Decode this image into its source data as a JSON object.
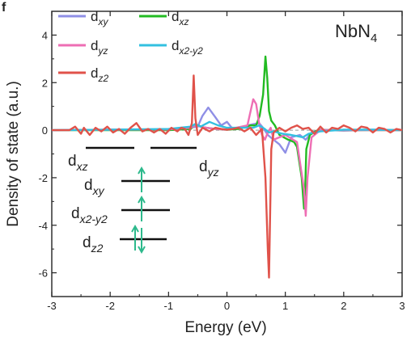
{
  "panel_letter": "f",
  "chart_data": {
    "type": "line",
    "title": "",
    "annotation": {
      "base": "NbN",
      "sub": "4"
    },
    "xlabel": "Energy (eV)",
    "ylabel": "Density of state (a.u.)",
    "xlim": [
      -3,
      3
    ],
    "ylim": [
      -7,
      5
    ],
    "xticks": [
      -3,
      -2,
      -1,
      0,
      1,
      2,
      3
    ],
    "yticks": [
      -6,
      -4,
      -2,
      0,
      2,
      4
    ],
    "grid": false,
    "legend_placement": "top-left",
    "series": [
      {
        "name": "d_xy",
        "name_base": "d",
        "name_sub": "xy",
        "color": "#8f8fe6",
        "x": [
          -3,
          -2,
          -1.2,
          -0.8,
          -0.5,
          -0.42,
          -0.32,
          -0.2,
          -0.1,
          0,
          0.1,
          0.45,
          0.55,
          0.62,
          0.7,
          0.8,
          0.9,
          1.0,
          1.1,
          1.25,
          1.35,
          1.45,
          1.6,
          2.0,
          2.5,
          3
        ],
        "y": [
          0,
          0.02,
          0.03,
          0.05,
          0.15,
          0.6,
          0.95,
          0.55,
          0.2,
          0.35,
          0.05,
          0.25,
          0.3,
          0.1,
          -0.2,
          -0.4,
          -0.6,
          -0.95,
          -0.3,
          -0.2,
          -0.4,
          -0.1,
          0.02,
          -0.02,
          0.02,
          0
        ]
      },
      {
        "name": "d_xz",
        "name_base": "d",
        "name_sub": "xz",
        "color": "#22bb22",
        "x": [
          -3,
          -1.0,
          -0.62,
          -0.55,
          -0.4,
          -0.2,
          0,
          0.2,
          0.4,
          0.5,
          0.56,
          0.62,
          0.66,
          0.69,
          0.72,
          0.76,
          0.82,
          0.9,
          1.05,
          1.15,
          1.2,
          1.28,
          1.32,
          1.34,
          1.36,
          1.42,
          1.55,
          2.0,
          2.5,
          3
        ],
        "y": [
          0,
          0,
          0.05,
          0.25,
          0.12,
          0.05,
          0.02,
          0.05,
          0.2,
          0.2,
          0.6,
          1.5,
          3.1,
          2.2,
          0.8,
          0.4,
          0.2,
          -0.2,
          -0.4,
          -0.5,
          -0.7,
          -2.0,
          -3.3,
          -2.5,
          -0.8,
          -0.2,
          0,
          0,
          0,
          0
        ]
      },
      {
        "name": "d_yz",
        "name_base": "d",
        "name_sub": "yz",
        "color": "#ee6eb4",
        "x": [
          -3,
          -2.0,
          -1.0,
          -0.62,
          -0.55,
          -0.4,
          -0.2,
          0,
          0.35,
          0.45,
          0.5,
          0.55,
          0.6,
          0.65,
          0.7,
          0.75,
          0.8,
          0.9,
          1.0,
          1.2,
          1.32,
          1.35,
          1.38,
          1.45,
          1.6,
          2.0,
          2.5,
          3
        ],
        "y": [
          0,
          0.02,
          0.03,
          0.1,
          0.2,
          0.12,
          0.05,
          0.02,
          0.2,
          1.3,
          1.1,
          0.3,
          -0.2,
          -0.4,
          -0.1,
          0.1,
          -0.4,
          -0.3,
          -0.2,
          -0.5,
          -2.5,
          -3.6,
          -2.0,
          -0.3,
          0,
          0,
          0,
          0
        ]
      },
      {
        "name": "d_x2-y2",
        "name_base": "d",
        "name_sub": "x2-y2",
        "color": "#33c0e0",
        "x": [
          -3,
          -2.0,
          -1.0,
          -0.62,
          -0.55,
          -0.45,
          -0.3,
          -0.15,
          0,
          0.2,
          0.45,
          0.55,
          0.65,
          0.72,
          0.8,
          0.95,
          1.1,
          1.2,
          1.3,
          1.4,
          1.6,
          2.0,
          2.5,
          3
        ],
        "y": [
          0,
          0.02,
          0.05,
          0.15,
          0.25,
          0.15,
          0.35,
          0.2,
          0.1,
          0.1,
          0.1,
          0.2,
          0.05,
          -0.1,
          -0.05,
          -0.15,
          -0.2,
          -0.25,
          -0.3,
          -0.15,
          -0.05,
          0.02,
          0.02,
          0
        ]
      },
      {
        "name": "d_z2",
        "name_base": "d",
        "name_sub": "z2",
        "color": "#e0524a",
        "x": [
          -3,
          -2.7,
          -2.6,
          -2.5,
          -2.45,
          -2.35,
          -2.25,
          -2.15,
          -2.05,
          -1.95,
          -1.85,
          -1.75,
          -1.65,
          -1.55,
          -1.45,
          -1.35,
          -1.25,
          -1.15,
          -1.05,
          -0.95,
          -0.85,
          -0.78,
          -0.72,
          -0.66,
          -0.6,
          -0.57,
          -0.54,
          -0.5,
          -0.42,
          -0.3,
          -0.2,
          -0.1,
          0,
          0.1,
          0.2,
          0.3,
          0.4,
          0.5,
          0.6,
          0.66,
          0.7,
          0.72,
          0.74,
          0.76,
          0.8,
          0.9,
          1.0,
          1.1,
          1.2,
          1.3,
          1.4,
          1.5,
          1.6,
          1.7,
          1.8,
          1.9,
          2.0,
          2.1,
          2.2,
          2.3,
          2.4,
          2.5,
          2.6,
          2.7,
          2.8,
          2.9,
          3
        ],
        "y": [
          0,
          0,
          0.15,
          -0.15,
          0.1,
          -0.2,
          0.1,
          -0.05,
          0.15,
          -0.1,
          0.05,
          -0.15,
          0.1,
          0.3,
          -0.05,
          0.05,
          -0.1,
          0.05,
          -0.15,
          0.1,
          -0.05,
          0.1,
          0.05,
          -0.2,
          0.3,
          2.3,
          0.5,
          -0.2,
          0.1,
          -0.05,
          0.1,
          0.05,
          0.02,
          0.05,
          0.1,
          -0.05,
          0.1,
          -0.2,
          0.05,
          -2.0,
          -5.0,
          -6.2,
          -3.5,
          -0.8,
          -0.1,
          0.1,
          -0.05,
          0.1,
          0.2,
          0.05,
          0.1,
          -0.15,
          0.15,
          -0.1,
          0.1,
          0.05,
          0.2,
          0.1,
          -0.05,
          0.15,
          0.1,
          -0.1,
          0.1,
          0.05,
          -0.1,
          0.05,
          0
        ]
      }
    ],
    "inset": {
      "arrow_color": "#2db98c",
      "levels": [
        {
          "key": "dxz",
          "base": "d",
          "sub": "xz"
        },
        {
          "key": "dyz",
          "base": "d",
          "sub": "yz"
        },
        {
          "key": "dxy",
          "base": "d",
          "sub": "xy",
          "electrons": "up"
        },
        {
          "key": "dx2y2",
          "base": "d",
          "sub": "x2-y2",
          "electrons": "up"
        },
        {
          "key": "dz2",
          "base": "d",
          "sub": "z2",
          "electrons": "up-down"
        }
      ]
    }
  }
}
